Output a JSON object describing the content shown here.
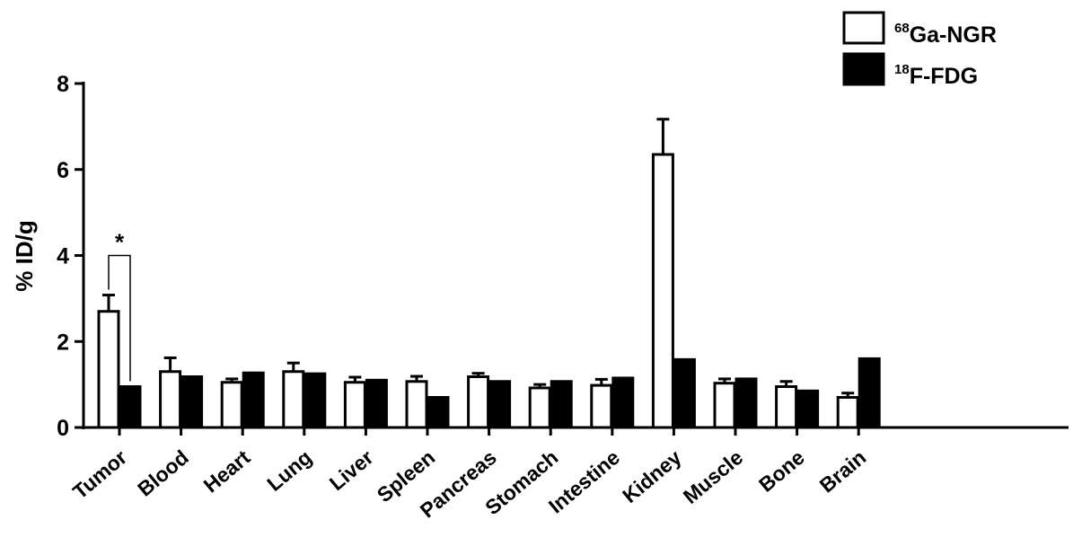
{
  "chart_data": {
    "type": "bar",
    "ylabel": "% ID/g",
    "ylim": [
      0,
      8
    ],
    "yticks": [
      0,
      2,
      4,
      6,
      8
    ],
    "categories": [
      "Tumor",
      "Blood",
      "Heart",
      "Lung",
      "Liver",
      "Spleen",
      "Pancreas",
      "Stomach",
      "Intestine",
      "Kidney",
      "Muscle",
      "Bone",
      "Brain"
    ],
    "series": [
      {
        "name_sup": "68",
        "name_main": "Ga-NGR",
        "fill": "#ffffff",
        "values": [
          2.7,
          1.3,
          1.05,
          1.3,
          1.05,
          1.07,
          1.18,
          0.92,
          0.98,
          6.35,
          1.03,
          0.95,
          0.7
        ],
        "errors": [
          0.38,
          0.32,
          0.08,
          0.2,
          0.12,
          0.12,
          0.08,
          0.08,
          0.14,
          0.82,
          0.1,
          0.12,
          0.1
        ]
      },
      {
        "name_sup": "18",
        "name_main": "F-FDG",
        "fill": "#000000",
        "values": [
          0.95,
          1.18,
          1.27,
          1.25,
          1.1,
          0.7,
          1.07,
          1.07,
          1.15,
          1.58,
          1.13,
          0.85,
          1.6
        ]
      }
    ],
    "annotation": "*",
    "legend": "top-right"
  },
  "colors": {
    "ink": "#000000",
    "background": "#ffffff"
  }
}
